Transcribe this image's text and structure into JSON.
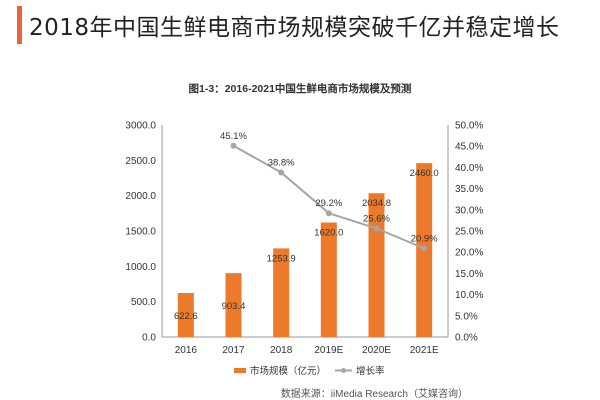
{
  "header": {
    "title": "2018年中国生鲜电商市场规模突破千亿并稳定增长",
    "accent_color": "#e8643c"
  },
  "chart_data": {
    "type": "bar+line",
    "title": "图1-3：2016-2021中国生鲜电商市场规模及预测",
    "categories": [
      "2016",
      "2017",
      "2018",
      "2019E",
      "2020E",
      "2021E"
    ],
    "series": [
      {
        "name": "市场规模（亿元）",
        "type": "bar",
        "axis": "left",
        "color": "#ec7a2a",
        "values": [
          622.6,
          903.4,
          1253.9,
          1620.0,
          2034.8,
          2460.0
        ],
        "labels": [
          "622.6",
          "903.4",
          "1253.9",
          "1620.0",
          "2034.8",
          "2460.0"
        ]
      },
      {
        "name": "增长率",
        "type": "line",
        "axis": "right",
        "color": "#a6a6a6",
        "values": [
          null,
          45.1,
          38.8,
          29.2,
          25.6,
          20.9
        ],
        "labels": [
          "",
          "45.1%",
          "38.8%",
          "29.2%",
          "25.6%",
          "20.9%"
        ]
      }
    ],
    "left_axis": {
      "ylim": [
        0,
        3000
      ],
      "ticks": [
        "0.0",
        "500.0",
        "1000.0",
        "1500.0",
        "2000.0",
        "2500.0",
        "3000.0"
      ]
    },
    "right_axis": {
      "ylim": [
        0,
        50
      ],
      "ticks": [
        "0.0%",
        "5.0%",
        "10.0%",
        "15.0%",
        "20.0%",
        "25.0%",
        "30.0%",
        "35.0%",
        "40.0%",
        "45.0%",
        "50.0%"
      ]
    },
    "grid": false,
    "legend": "bottom",
    "source": "数据来源：iiMedia Research（艾媒咨询）"
  }
}
